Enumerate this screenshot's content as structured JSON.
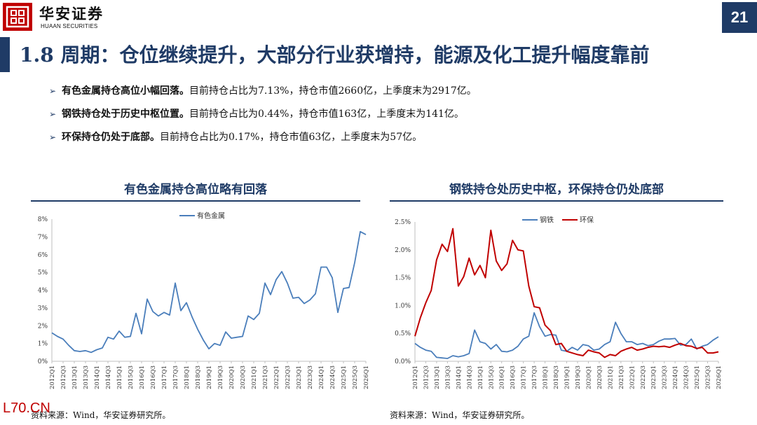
{
  "header": {
    "brand_cn": "华安证券",
    "brand_en": "HUAAN SECURITIES",
    "page_number": "21",
    "title": "1.8 周期：仓位继续提升，大部分行业获增持，能源及化工提升幅度靠前",
    "colors": {
      "navy": "#1f3b66",
      "red": "#c00000"
    }
  },
  "bullets": [
    {
      "head": "有色金属持仓高位小幅回落。",
      "body": "目前持仓占比为7.13%，持仓市值2660亿，上季度末为2917亿。"
    },
    {
      "head": "钢铁持仓处于历史中枢位置。",
      "body": "目前持仓占比为0.44%，持仓市值163亿，上季度末为141亿。"
    },
    {
      "head": "环保持仓仍处于底部。",
      "body": "目前持仓占比为0.17%，持仓市值63亿，上季度末为57亿。"
    }
  ],
  "panels": {
    "left_title": "有色金属持仓高位略有回落",
    "right_title": "钢铁持仓处历史中枢，环保持仓仍处底部",
    "left_source": "资料来源：Wind，华安证券研究所。",
    "right_source": "资料来源：Wind，华安证券研究所。"
  },
  "stamp": "L70.CN",
  "chart_data": [
    {
      "type": "line",
      "x": [
        "2012Q1",
        "2012Q2",
        "2012Q3",
        "2012Q4",
        "2013Q1",
        "2013Q2",
        "2013Q3",
        "2013Q4",
        "2014Q1",
        "2014Q2",
        "2014Q3",
        "2014Q4",
        "2015Q1",
        "2015Q2",
        "2015Q3",
        "2015Q4",
        "2016Q1",
        "2016Q2",
        "2016Q3",
        "2016Q4",
        "2017Q1",
        "2017Q2",
        "2017Q3",
        "2017Q4",
        "2018Q1",
        "2018Q2",
        "2018Q3",
        "2018Q4",
        "2019Q1",
        "2019Q2",
        "2019Q3",
        "2019Q4",
        "2020Q1",
        "2020Q2",
        "2020Q3",
        "2020Q4",
        "2021Q1",
        "2021Q2",
        "2021Q3",
        "2021Q4",
        "2022Q1",
        "2022Q2",
        "2022Q3",
        "2022Q4",
        "2023Q1",
        "2023Q2",
        "2023Q3",
        "2023Q4",
        "2024Q1",
        "2024Q2",
        "2024Q3",
        "2024Q4",
        "2025Q1",
        "2025Q2",
        "2025Q3",
        "2025Q4",
        "2026Q1"
      ],
      "series": [
        {
          "name": "有色金属",
          "color": "#4a7ebb",
          "values": [
            1.6,
            1.4,
            1.25,
            0.9,
            0.6,
            0.55,
            0.6,
            0.5,
            0.65,
            0.75,
            1.35,
            1.25,
            1.7,
            1.35,
            1.4,
            2.7,
            1.55,
            3.5,
            2.8,
            2.55,
            2.75,
            2.6,
            4.4,
            2.85,
            3.3,
            2.5,
            1.8,
            1.2,
            0.7,
            1.0,
            0.9,
            1.65,
            1.3,
            1.35,
            1.4,
            2.55,
            2.35,
            2.7,
            4.4,
            3.75,
            4.6,
            5.05,
            4.4,
            3.55,
            3.6,
            3.25,
            3.45,
            3.8,
            5.3,
            5.3,
            4.7,
            2.75,
            4.1,
            4.15,
            5.55,
            7.3,
            7.13
          ]
        }
      ],
      "ylim": [
        0,
        8
      ],
      "y_ticks": [
        "0%",
        "1%",
        "2%",
        "3%",
        "4%",
        "5%",
        "6%",
        "7%",
        "8%"
      ],
      "x_tick_labels": [
        "2012Q1",
        "2012Q3",
        "2013Q1",
        "2013Q3",
        "2014Q1",
        "2014Q3",
        "2015Q1",
        "2015Q3",
        "2016Q1",
        "2016Q3",
        "2017Q1",
        "2017Q3",
        "2018Q1",
        "2018Q3",
        "2019Q1",
        "2019Q3",
        "2020Q1",
        "2020Q3",
        "2021Q1",
        "2021Q3",
        "2022Q1",
        "2022Q3",
        "2023Q1",
        "2023Q3",
        "2024Q1",
        "2024Q3",
        "2025Q1",
        "2025Q3",
        "2026Q1"
      ],
      "legend": "top-center",
      "grid": false
    },
    {
      "type": "line",
      "x": [
        "2012Q1",
        "2012Q2",
        "2012Q3",
        "2012Q4",
        "2013Q1",
        "2013Q2",
        "2013Q3",
        "2013Q4",
        "2014Q1",
        "2014Q2",
        "2014Q3",
        "2014Q4",
        "2015Q1",
        "2015Q2",
        "2015Q3",
        "2015Q4",
        "2016Q1",
        "2016Q2",
        "2016Q3",
        "2016Q4",
        "2017Q1",
        "2017Q2",
        "2017Q3",
        "2017Q4",
        "2018Q1",
        "2018Q2",
        "2018Q3",
        "2018Q4",
        "2019Q1",
        "2019Q2",
        "2019Q3",
        "2019Q4",
        "2020Q1",
        "2020Q2",
        "2020Q3",
        "2020Q4",
        "2021Q1",
        "2021Q2",
        "2021Q3",
        "2021Q4",
        "2022Q1",
        "2022Q2",
        "2022Q3",
        "2022Q4",
        "2023Q1",
        "2023Q2",
        "2023Q3",
        "2023Q4",
        "2024Q1",
        "2024Q2",
        "2024Q3",
        "2024Q4",
        "2025Q1",
        "2025Q2",
        "2025Q3",
        "2025Q4",
        "2026Q1"
      ],
      "series": [
        {
          "name": "钢铁",
          "color": "#4a7ebb",
          "values": [
            0.32,
            0.25,
            0.2,
            0.18,
            0.07,
            0.06,
            0.05,
            0.1,
            0.08,
            0.1,
            0.14,
            0.56,
            0.35,
            0.32,
            0.22,
            0.3,
            0.18,
            0.17,
            0.2,
            0.27,
            0.4,
            0.45,
            0.87,
            0.62,
            0.45,
            0.48,
            0.47,
            0.2,
            0.18,
            0.25,
            0.2,
            0.3,
            0.28,
            0.2,
            0.22,
            0.3,
            0.35,
            0.7,
            0.5,
            0.35,
            0.35,
            0.3,
            0.32,
            0.28,
            0.3,
            0.36,
            0.4,
            0.4,
            0.41,
            0.29,
            0.3,
            0.4,
            0.22,
            0.27,
            0.3,
            0.38,
            0.44
          ]
        },
        {
          "name": "环保",
          "color": "#c00000",
          "values": [
            0.45,
            0.78,
            1.05,
            1.27,
            1.82,
            2.1,
            1.97,
            2.38,
            1.35,
            1.52,
            1.85,
            1.55,
            1.72,
            1.5,
            2.35,
            1.8,
            1.63,
            1.75,
            2.17,
            2.0,
            1.98,
            1.35,
            0.98,
            0.96,
            0.65,
            0.55,
            0.3,
            0.32,
            0.18,
            0.15,
            0.12,
            0.1,
            0.2,
            0.17,
            0.15,
            0.07,
            0.12,
            0.1,
            0.18,
            0.22,
            0.25,
            0.2,
            0.22,
            0.25,
            0.27,
            0.26,
            0.27,
            0.25,
            0.29,
            0.32,
            0.28,
            0.27,
            0.23,
            0.25,
            0.15,
            0.15,
            0.17
          ]
        }
      ],
      "ylim": [
        0,
        2.5
      ],
      "y_ticks": [
        "0.0%",
        "0.5%",
        "1.0%",
        "1.5%",
        "2.0%",
        "2.5%"
      ],
      "x_tick_labels": [
        "2012Q1",
        "2012Q3",
        "2013Q1",
        "2013Q3",
        "2014Q1",
        "2014Q3",
        "2015Q1",
        "2015Q3",
        "2016Q1",
        "2016Q3",
        "2017Q1",
        "2017Q3",
        "2018Q1",
        "2018Q3",
        "2019Q1",
        "2019Q3",
        "2020Q1",
        "2020Q3",
        "2021Q1",
        "2021Q3",
        "2022Q1",
        "2022Q3",
        "2023Q1",
        "2023Q3",
        "2024Q1",
        "2024Q3",
        "2025Q1",
        "2025Q3",
        "2026Q1"
      ],
      "legend": "top-center",
      "grid": false
    }
  ]
}
